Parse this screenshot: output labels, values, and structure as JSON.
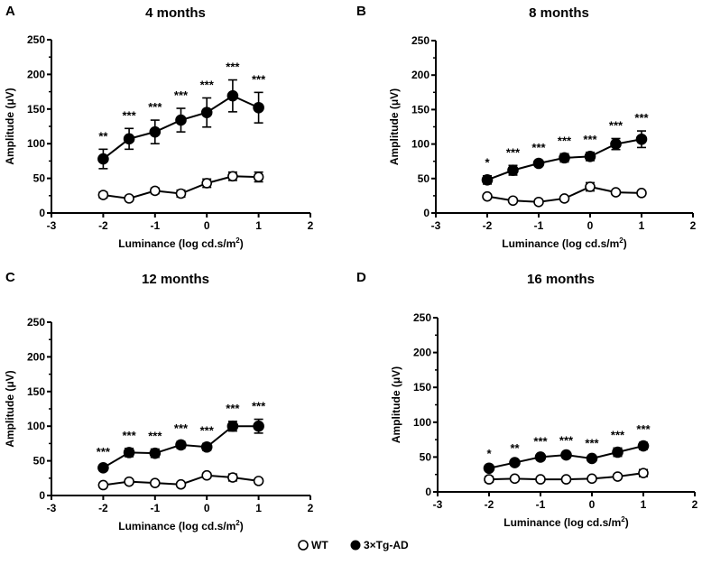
{
  "chart_data": [
    {
      "type": "line",
      "panel_letter": "A",
      "title": "4 months",
      "xlabel": "Luminance (log cd.s/m",
      "xlabel_sup": "2",
      "xlabel_end": ")",
      "ylabel": "Amplitude (μV)",
      "xlim": [
        -3,
        2
      ],
      "ylim": [
        0,
        250
      ],
      "xticks": [
        "-3",
        "-2",
        "-1",
        "0",
        "1",
        "2"
      ],
      "yticks": [
        "0",
        "50",
        "100",
        "150",
        "200",
        "250"
      ],
      "x": [
        -2,
        -1.5,
        -1,
        -0.5,
        0,
        0.5,
        1
      ],
      "series": [
        {
          "name": "WT",
          "values": [
            26,
            21,
            32,
            28,
            43,
            53,
            52
          ],
          "errors": [
            4,
            2,
            4,
            5,
            6,
            6,
            7
          ]
        },
        {
          "name": "3×Tg-AD",
          "values": [
            78,
            107,
            117,
            134,
            145,
            169,
            152
          ],
          "errors": [
            14,
            15,
            17,
            17,
            21,
            23,
            22
          ]
        }
      ],
      "annotations": [
        "**",
        "***",
        "***",
        "***",
        "***",
        "***",
        "***"
      ]
    },
    {
      "type": "line",
      "panel_letter": "B",
      "title": "8 months",
      "xlabel": "Luminance (log cd.s/m",
      "xlabel_sup": "2",
      "xlabel_end": ")",
      "ylabel": "Amplitude (μV)",
      "xlim": [
        -3,
        2
      ],
      "ylim": [
        0,
        250
      ],
      "xticks": [
        "-3",
        "-2",
        "-1",
        "0",
        "1",
        "2"
      ],
      "yticks": [
        "0",
        "50",
        "100",
        "150",
        "200",
        "250"
      ],
      "x": [
        -2,
        -1.5,
        -1,
        -0.5,
        0,
        0.5,
        1
      ],
      "series": [
        {
          "name": "WT",
          "values": [
            24,
            18,
            16,
            21,
            38,
            30,
            29
          ],
          "errors": [
            2,
            2,
            2,
            3,
            6,
            2,
            2
          ]
        },
        {
          "name": "3×Tg-AD",
          "values": [
            48,
            62,
            72,
            80,
            82,
            100,
            107
          ],
          "errors": [
            6,
            7,
            4,
            6,
            6,
            8,
            12
          ]
        }
      ],
      "annotations": [
        "*",
        "***",
        "***",
        "***",
        "***",
        "***",
        "***"
      ]
    },
    {
      "type": "line",
      "panel_letter": "C",
      "title": "12 months",
      "xlabel": "Luminance (log cd.s/m",
      "xlabel_sup": "2",
      "xlabel_end": ")",
      "ylabel": "Amplitude (μV)",
      "xlim": [
        -3,
        2
      ],
      "ylim": [
        0,
        250
      ],
      "xticks": [
        "-3",
        "-2",
        "-1",
        "0",
        "1",
        "2"
      ],
      "yticks": [
        "0",
        "50",
        "100",
        "150",
        "200",
        "250"
      ],
      "x": [
        -2,
        -1.5,
        -1,
        -0.5,
        0,
        0.5,
        1
      ],
      "series": [
        {
          "name": "WT",
          "values": [
            15,
            20,
            18,
            16,
            29,
            26,
            21
          ],
          "errors": [
            2,
            2,
            2,
            2,
            3,
            5,
            2
          ]
        },
        {
          "name": "3×Tg-AD",
          "values": [
            40,
            62,
            61,
            73,
            70,
            100,
            100
          ],
          "errors": [
            4,
            6,
            6,
            5,
            5,
            7,
            10
          ]
        }
      ],
      "annotations": [
        "***",
        "***",
        "***",
        "***",
        "***",
        "***",
        "***"
      ]
    },
    {
      "type": "line",
      "panel_letter": "D",
      "title": "16 months",
      "xlabel": "Luminance (log cd.s/m",
      "xlabel_sup": "2",
      "xlabel_end": ")",
      "ylabel": "Amplitude (μV)",
      "xlim": [
        -3,
        2
      ],
      "ylim": [
        0,
        250
      ],
      "xticks": [
        "-3",
        "-2",
        "-1",
        "0",
        "1",
        "2"
      ],
      "yticks": [
        "0",
        "50",
        "100",
        "150",
        "200",
        "250"
      ],
      "x": [
        -2,
        -1.5,
        -1,
        -0.5,
        0,
        0.5,
        1
      ],
      "series": [
        {
          "name": "WT",
          "values": [
            18,
            19,
            18,
            18,
            19,
            22,
            27
          ],
          "errors": [
            4,
            2,
            2,
            2,
            2,
            2,
            5
          ]
        },
        {
          "name": "3×Tg-AD",
          "values": [
            34,
            42,
            50,
            53,
            48,
            57,
            66
          ],
          "errors": [
            2,
            2,
            4,
            2,
            3,
            6,
            5
          ]
        }
      ],
      "annotations": [
        "*",
        "**",
        "***",
        "***",
        "***",
        "***",
        "***"
      ]
    }
  ],
  "legend": {
    "items": [
      {
        "label": "WT",
        "marker": "open-circle"
      },
      {
        "label": "3×Tg-AD",
        "marker": "filled-circle"
      }
    ],
    "placement": "bottom-center"
  }
}
